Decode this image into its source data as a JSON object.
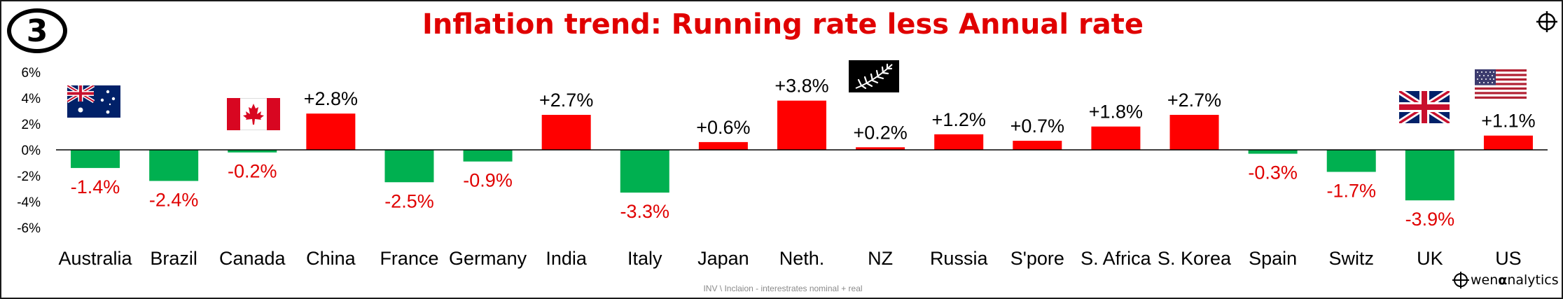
{
  "badge": "3",
  "footer": "INV \\ Inclaion - interestrates nominal + real",
  "brand": {
    "mark": "wen ",
    "alpha": "α",
    "rest": "nalytics"
  },
  "icons": [
    "crosshair-icon",
    "owen-logo-icon",
    "flag-australia-icon",
    "flag-canada-icon",
    "flag-new-zealand-fern-icon",
    "flag-uk-icon",
    "flag-us-icon"
  ],
  "colors": {
    "positive": "#ff0000",
    "negative": "#00b050",
    "title": "#e00000",
    "negative_label": "#e00000"
  },
  "chart_data": {
    "type": "bar",
    "title": "Inflation trend: Running rate less Annual rate",
    "xlabel": "",
    "ylabel": "",
    "ylim": [
      -6,
      6
    ],
    "yticks": [
      "6%",
      "4%",
      "2%",
      "0%",
      "-2%",
      "-4%",
      "-6%"
    ],
    "ytick_values": [
      6,
      4,
      2,
      0,
      -2,
      -4,
      -6
    ],
    "grid": false,
    "legend": "none",
    "categories": [
      "Australia",
      "Brazil",
      "Canada",
      "China",
      "France",
      "Germany",
      "India",
      "Italy",
      "Japan",
      "Neth.",
      "NZ",
      "Russia",
      "S'pore",
      "S. Africa",
      "S. Korea",
      "Spain",
      "Switz",
      "UK",
      "US"
    ],
    "values": [
      -1.4,
      -2.4,
      -0.2,
      2.8,
      -2.5,
      -0.9,
      2.7,
      -3.3,
      0.6,
      3.8,
      0.2,
      1.2,
      0.7,
      1.8,
      2.7,
      -0.3,
      -1.7,
      -3.9,
      1.1
    ],
    "data_labels": [
      "-1.4%",
      "-2.4%",
      "-0.2%",
      "+2.8%",
      "-2.5%",
      "-0.9%",
      "+2.7%",
      "-3.3%",
      "+0.6%",
      "+3.8%",
      "+0.2%",
      "+1.2%",
      "+0.7%",
      "+1.8%",
      "+2.7%",
      "-0.3%",
      "-1.7%",
      "-3.9%",
      "+1.1%"
    ]
  }
}
